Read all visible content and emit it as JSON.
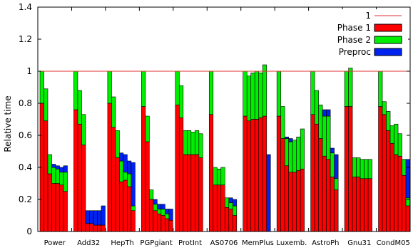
{
  "chart_data": {
    "type": "bar",
    "stacked": true,
    "ylabel": "Relative time",
    "ylim": [
      0,
      1.4
    ],
    "yticks": [
      "0",
      "0.2",
      "0.4",
      "0.6",
      "0.8",
      "1",
      "1.2",
      "1.4"
    ],
    "reference_line": {
      "label": "1",
      "value": 1.0,
      "color": "#e03030"
    },
    "legend": {
      "placement": "top-right"
    },
    "series": [
      {
        "name": "Phase 1",
        "color": "#ff0000"
      },
      {
        "name": "Phase 2",
        "color": "#00ee00"
      },
      {
        "name": "Preproc",
        "color": "#0022ee"
      }
    ],
    "categories": [
      "Power",
      "Add32",
      "HepTh",
      "PGPgiant",
      "ProtInt",
      "AS0706",
      "MemPlus",
      "Luxemb.",
      "AstroPh",
      "Gnu31",
      "CondM05"
    ],
    "groups": [
      {
        "category": "Power",
        "bars": [
          [
            0.8,
            0.2,
            0
          ],
          [
            0.69,
            0.2,
            0
          ],
          [
            0.36,
            0.12,
            0
          ],
          [
            0.3,
            0.1,
            0.02
          ],
          [
            0.3,
            0.09,
            0.02
          ],
          [
            0.29,
            0.08,
            0.03
          ],
          [
            0.25,
            0.12,
            0.04
          ]
        ]
      },
      {
        "category": "Add32",
        "bars": [
          [
            0.76,
            0.24,
            0
          ],
          [
            0.67,
            0.21,
            0
          ],
          [
            0.54,
            0.19,
            0
          ],
          [
            0.05,
            0,
            0.08
          ],
          [
            0.05,
            0,
            0.08
          ],
          [
            0.04,
            0,
            0.09
          ],
          [
            0.04,
            0,
            0.09
          ],
          [
            0.04,
            0,
            0.12
          ]
        ]
      },
      {
        "category": "HepTh",
        "bars": [
          [
            0.8,
            0.2,
            0
          ],
          [
            0.65,
            0.19,
            0
          ],
          [
            0.46,
            0.17,
            0
          ],
          [
            0.31,
            0.13,
            0.05
          ],
          [
            0.32,
            0.05,
            0.11
          ],
          [
            0.28,
            0.08,
            0.08
          ],
          [
            0.13,
            0.03,
            0.27
          ]
        ]
      },
      {
        "category": "PGPgiant",
        "bars": [
          [
            0.78,
            0.22,
            0
          ],
          [
            0.56,
            0.16,
            0
          ],
          [
            0.2,
            0.06,
            0
          ],
          [
            0.13,
            0.04,
            0.03
          ],
          [
            0.11,
            0.03,
            0.03
          ],
          [
            0.1,
            0.04,
            0.03
          ],
          [
            0.08,
            0.03,
            0.03
          ],
          [
            0.07,
            0,
            0.07
          ]
        ]
      },
      {
        "category": "ProtInt",
        "bars": [
          [
            0.79,
            0.21,
            0
          ],
          [
            0.71,
            0.2,
            0
          ],
          [
            0.48,
            0.15,
            0
          ],
          [
            0.48,
            0.15,
            0
          ],
          [
            0.48,
            0.14,
            0
          ],
          [
            0.48,
            0.15,
            0
          ],
          [
            0.46,
            0.15,
            0
          ]
        ]
      },
      {
        "category": "AS0706",
        "bars": [
          [
            0.73,
            0.27,
            0
          ],
          [
            0.29,
            0.11,
            0
          ],
          [
            0.29,
            0.1,
            0
          ],
          [
            0.29,
            0.11,
            0
          ],
          [
            0.15,
            0.06,
            0
          ],
          [
            0.14,
            0.04,
            0.03
          ],
          [
            0.1,
            0.06,
            0.04
          ]
        ]
      },
      {
        "category": "MemPlus",
        "bars": [
          [
            0.72,
            0.28,
            0
          ],
          [
            0.69,
            0.28,
            0
          ],
          [
            0.7,
            0.29,
            0
          ],
          [
            0.7,
            0.3,
            0
          ],
          [
            0.71,
            0.28,
            0
          ],
          [
            0.72,
            0.32,
            0
          ],
          [
            0,
            0,
            0.48
          ]
        ]
      },
      {
        "category": "Luxemb.",
        "bars": [
          [
            0.72,
            0.28,
            0
          ],
          [
            0.58,
            0.2,
            0
          ],
          [
            0.41,
            0.17,
            0.01
          ],
          [
            0.37,
            0.19,
            0.02
          ],
          [
            0.37,
            0.2,
            0
          ],
          [
            0.38,
            0.21,
            0
          ],
          [
            0.39,
            0.25,
            0
          ]
        ]
      },
      {
        "category": "AstroPh",
        "bars": [
          [
            0.73,
            0.27,
            0
          ],
          [
            0.67,
            0.21,
            0
          ],
          [
            0.58,
            0.21,
            0
          ],
          [
            0.47,
            0.25,
            0.04
          ],
          [
            0.45,
            0.27,
            0.04
          ],
          [
            0.34,
            0.15,
            0.03
          ],
          [
            0.26,
            0.07,
            0.15
          ]
        ]
      },
      {
        "category": "Gnu31",
        "bars": [
          [
            0.78,
            0.22,
            0
          ],
          [
            0.78,
            0.24,
            0
          ],
          [
            0.34,
            0.12,
            0
          ],
          [
            0.34,
            0.12,
            0
          ],
          [
            0.33,
            0.12,
            0
          ],
          [
            0.33,
            0.12,
            0
          ],
          [
            0.33,
            0.12,
            0
          ]
        ]
      },
      {
        "category": "CondM05",
        "bars": [
          [
            0.78,
            0.22,
            0
          ],
          [
            0.73,
            0.08,
            0
          ],
          [
            0.63,
            0.12,
            0
          ],
          [
            0.55,
            0.11,
            0
          ],
          [
            0.48,
            0.19,
            0
          ],
          [
            0.47,
            0.14,
            0
          ],
          [
            0.35,
            0.1,
            0
          ],
          [
            0.16,
            0.05,
            0.24
          ]
        ]
      }
    ]
  }
}
